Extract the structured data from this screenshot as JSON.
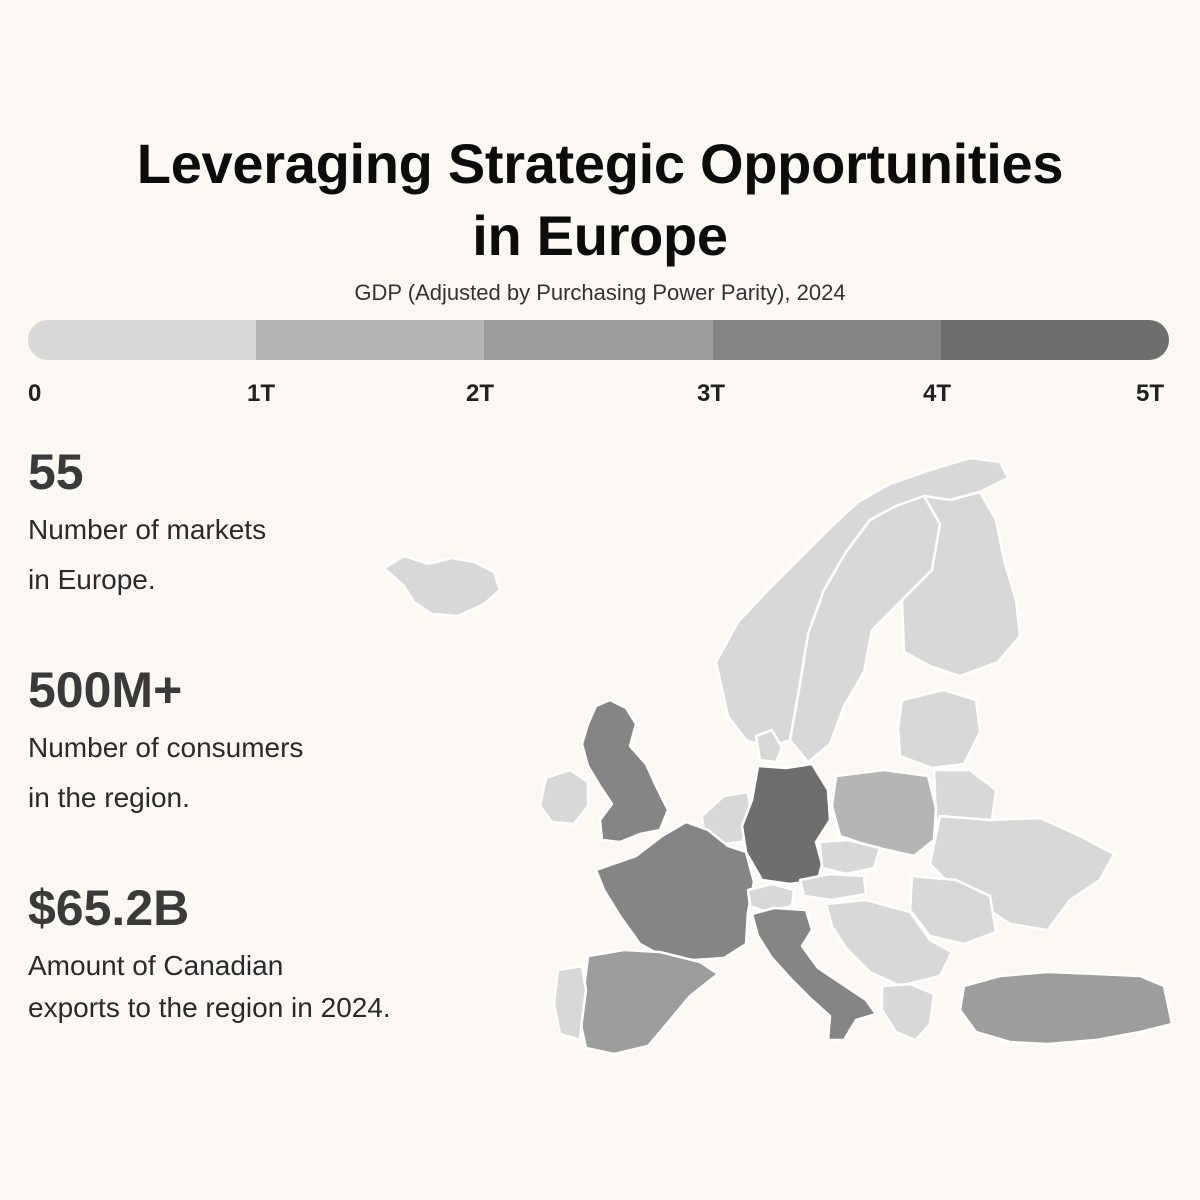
{
  "header": {
    "title_line1": "Leveraging Strategic Opportunities",
    "title_line2": "in Europe",
    "subtitle": "GDP (Adjusted by Purchasing Power Parity), 2024"
  },
  "legend": {
    "ticks": [
      "0",
      "1T",
      "2T",
      "3T",
      "4T",
      "5T"
    ],
    "colors": [
      "#d8d8d8",
      "#b5b5b5",
      "#9d9d9d",
      "#858585",
      "#6e6e6e"
    ]
  },
  "stats": [
    {
      "value": "55",
      "line1": "Number of markets",
      "line2": "in Europe."
    },
    {
      "value": "500M+",
      "line1": "Number of consumers",
      "line2": "in the region."
    },
    {
      "value": "$65.2B",
      "line1": "Amount of Canadian",
      "line2": "exports to the region in 2024."
    }
  ],
  "map": {
    "countries": [
      {
        "name": "iceland",
        "gdp_bin": 0
      },
      {
        "name": "norway",
        "gdp_bin": 0
      },
      {
        "name": "sweden",
        "gdp_bin": 0
      },
      {
        "name": "finland",
        "gdp_bin": 0
      },
      {
        "name": "united-kingdom",
        "gdp_bin": 3
      },
      {
        "name": "ireland",
        "gdp_bin": 0
      },
      {
        "name": "france",
        "gdp_bin": 3
      },
      {
        "name": "spain",
        "gdp_bin": 2
      },
      {
        "name": "portugal",
        "gdp_bin": 0
      },
      {
        "name": "germany",
        "gdp_bin": 4
      },
      {
        "name": "italy",
        "gdp_bin": 3
      },
      {
        "name": "poland",
        "gdp_bin": 1
      },
      {
        "name": "turkey",
        "gdp_bin": 2
      },
      {
        "name": "ukraine",
        "gdp_bin": 0
      },
      {
        "name": "baltics",
        "gdp_bin": 0
      },
      {
        "name": "belarus",
        "gdp_bin": 0
      },
      {
        "name": "benelux",
        "gdp_bin": 0
      },
      {
        "name": "switzerland",
        "gdp_bin": 0
      },
      {
        "name": "austria",
        "gdp_bin": 0
      },
      {
        "name": "czechia",
        "gdp_bin": 0
      },
      {
        "name": "romania",
        "gdp_bin": 0
      },
      {
        "name": "balkans",
        "gdp_bin": 0
      },
      {
        "name": "greece",
        "gdp_bin": 0
      },
      {
        "name": "denmark",
        "gdp_bin": 0
      }
    ]
  }
}
